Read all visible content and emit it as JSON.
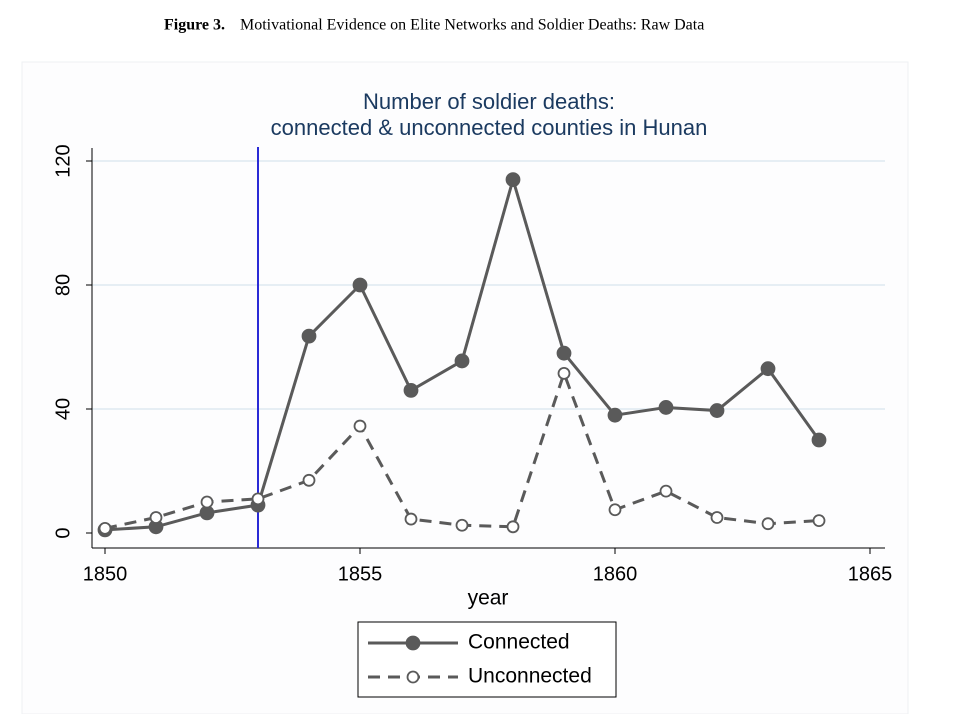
{
  "figure": {
    "label": "Figure 3.",
    "caption": "Motivational Evidence on Elite Networks and Soldier Deaths: Raw Data"
  },
  "chart_data": {
    "type": "line",
    "title": [
      "Number of soldier deaths:",
      "connected & unconnected counties in Hunan"
    ],
    "xlabel": "year",
    "x": [
      1850,
      1851,
      1852,
      1853,
      1854,
      1855,
      1856,
      1857,
      1858,
      1859,
      1860,
      1861,
      1862,
      1863,
      1864
    ],
    "series": [
      {
        "name": "Connected",
        "color": "#5a5a5a",
        "style": "solid",
        "marker": "filled",
        "values": [
          1,
          2,
          6.5,
          9,
          63.5,
          80,
          46,
          55.5,
          114,
          58,
          38,
          40.5,
          39.5,
          53,
          30
        ]
      },
      {
        "name": "Unconnected",
        "color": "#5a5a5a",
        "style": "dashed",
        "marker": "hollow",
        "values": [
          1.5,
          5,
          10,
          11,
          17,
          34.5,
          4.5,
          2.5,
          2,
          51.5,
          7.5,
          13.5,
          5,
          3,
          4
        ]
      }
    ],
    "vline": {
      "x": 1853,
      "color": "#2a2ad6"
    },
    "xlim": [
      1850,
      1865
    ],
    "xticks": [
      1850,
      1855,
      1860,
      1865
    ],
    "ylim": [
      0,
      120
    ],
    "yticks": [
      0,
      40,
      80,
      120
    ],
    "grid": true,
    "legend": "bottom"
  }
}
